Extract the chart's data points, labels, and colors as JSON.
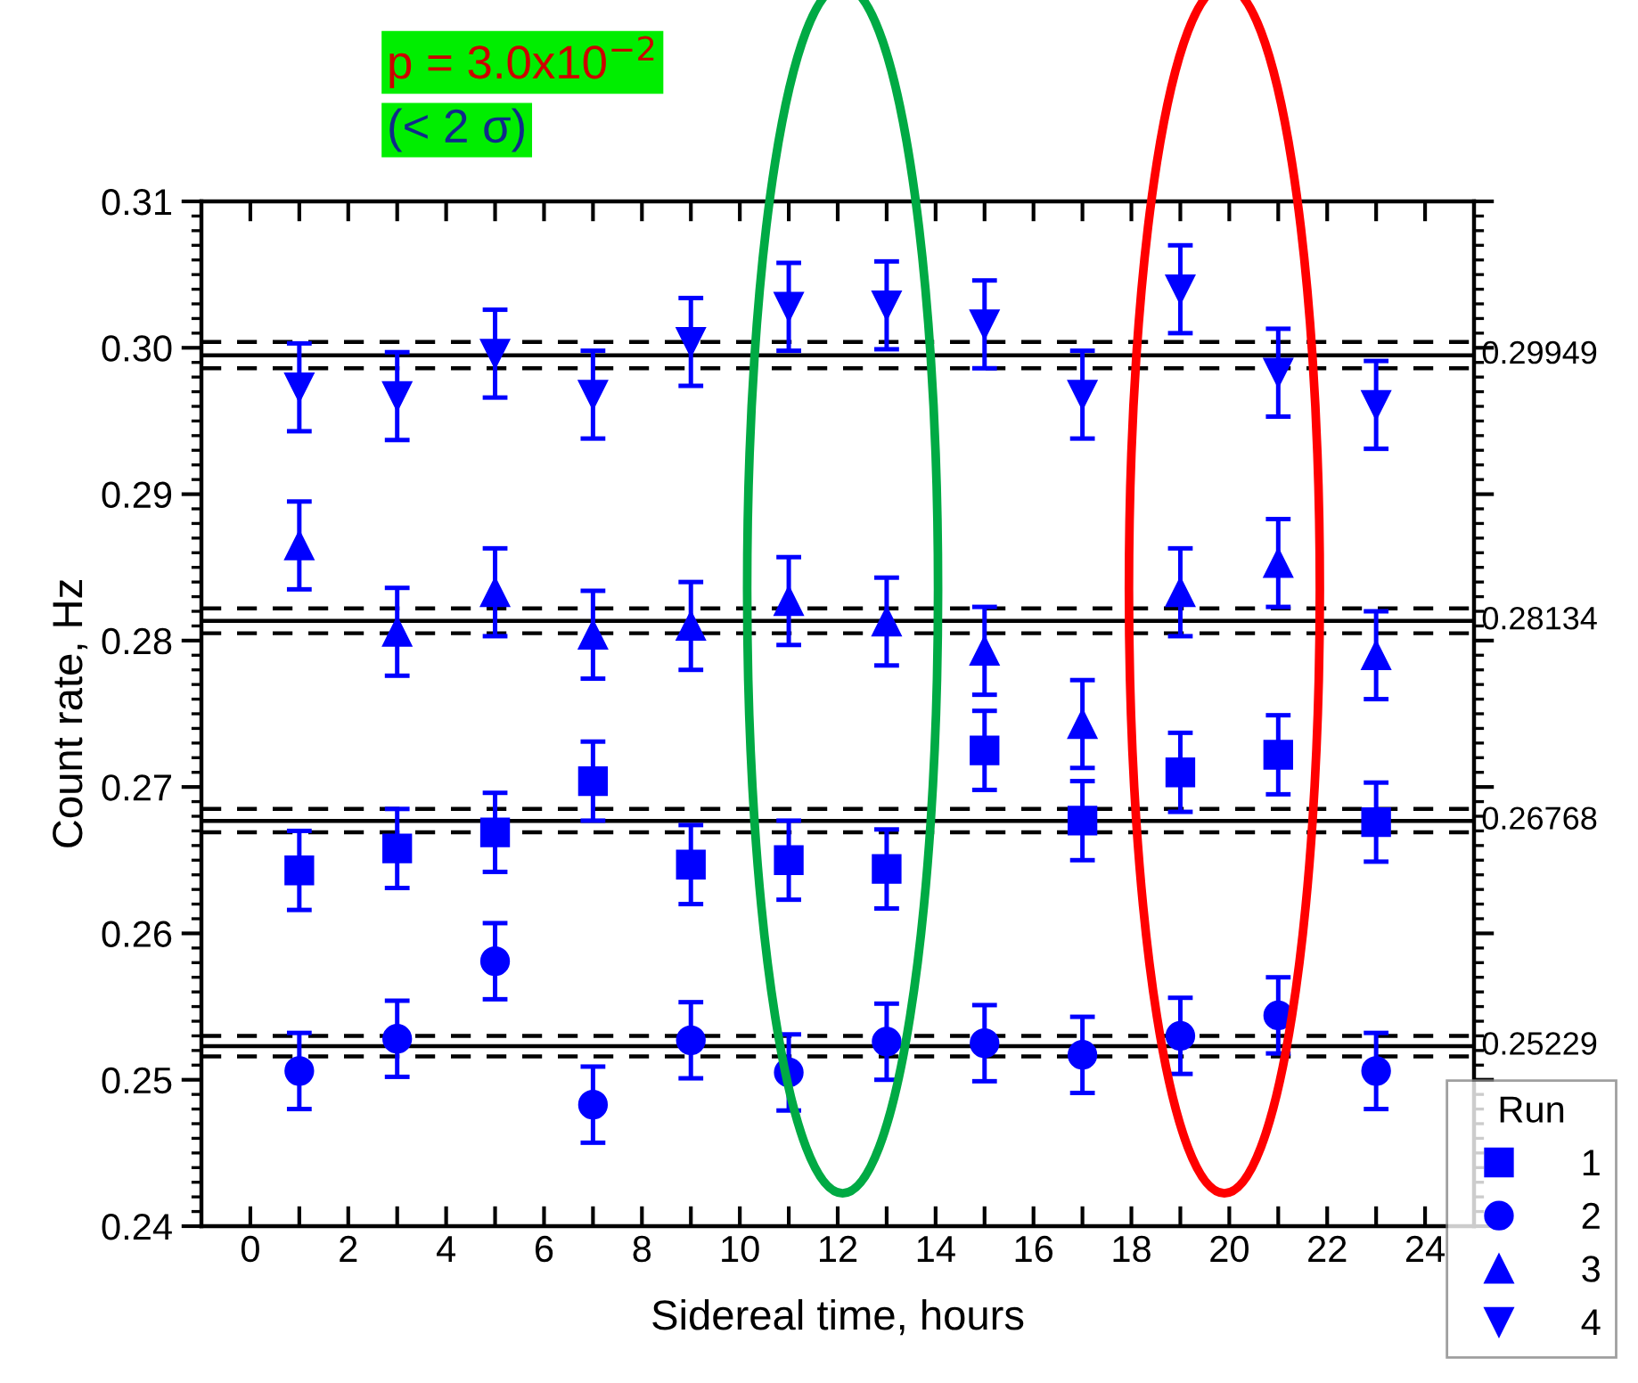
{
  "chart_data": {
    "type": "scatter",
    "xlabel": "Sidereal time, hours",
    "ylabel": "Count rate, Hz",
    "legend_title": "Run",
    "annotations": [
      "p = 3.0x10$^{−2}$",
      "(< 2 σ)"
    ],
    "x": [
      1,
      3,
      5,
      7,
      9,
      11,
      13,
      15,
      17,
      19,
      21,
      23
    ],
    "series": [
      {
        "name": "1",
        "color": "#0000ff",
        "marker": "square",
        "values": [
          0.2643,
          0.2658,
          0.2669,
          0.2704,
          0.2647,
          0.265,
          0.2644,
          0.2725,
          0.2677,
          0.271,
          0.2722,
          0.2676
        ],
        "errors": [
          0.0027,
          0.0027,
          0.0027,
          0.0027,
          0.0027,
          0.0027,
          0.0027,
          0.0027,
          0.0027,
          0.0027,
          0.0027,
          0.0027
        ]
      },
      {
        "name": "2",
        "color": "#0000ff",
        "marker": "circle",
        "values": [
          0.2506,
          0.2528,
          0.2581,
          0.2483,
          0.2527,
          0.2505,
          0.2526,
          0.2525,
          0.2517,
          0.253,
          0.2544,
          0.2506
        ],
        "errors": [
          0.0026,
          0.0026,
          0.0026,
          0.0026,
          0.0026,
          0.0026,
          0.0026,
          0.0026,
          0.0026,
          0.0026,
          0.0026,
          0.0026
        ]
      },
      {
        "name": "3",
        "color": "#0000ff",
        "marker": "triangle",
        "values": [
          0.2865,
          0.2806,
          0.2833,
          0.2804,
          0.281,
          0.2827,
          0.2813,
          0.2793,
          0.2743,
          0.2833,
          0.2853,
          0.279
        ],
        "errors": [
          0.003,
          0.003,
          0.003,
          0.003,
          0.003,
          0.003,
          0.003,
          0.003,
          0.003,
          0.003,
          0.003,
          0.003
        ]
      },
      {
        "name": "4",
        "color": "#0000ff",
        "marker": "triangle_down",
        "values": [
          0.2973,
          0.2967,
          0.2996,
          0.2968,
          0.3004,
          0.3028,
          0.3029,
          0.3016,
          0.2968,
          0.304,
          0.2983,
          0.2961
        ],
        "errors": [
          0.003,
          0.003,
          0.003,
          0.003,
          0.003,
          0.003,
          0.003,
          0.003,
          0.003,
          0.003,
          0.003,
          0.003
        ]
      }
    ],
    "xlim": [
      -1,
      25
    ],
    "xticks": [
      0,
      {
        "value": 1,
        "label": null
      },
      2,
      {
        "value": 3,
        "label": null
      },
      4,
      {
        "value": 5,
        "label": null
      },
      6,
      {
        "value": 7,
        "label": null
      },
      8,
      {
        "value": 9,
        "label": null
      },
      10,
      {
        "value": 11,
        "label": null
      },
      12,
      {
        "value": 13,
        "label": null
      },
      14,
      {
        "value": 15,
        "label": null
      },
      16,
      {
        "value": 17,
        "label": null
      },
      18,
      {
        "value": 19,
        "label": null
      },
      20,
      {
        "value": 21,
        "label": null
      },
      22,
      {
        "value": 23,
        "label": null
      },
      24
    ],
    "ylim": [
      0.24,
      0.31
    ],
    "yticks": [
      {
        "value": 0.24,
        "label": "0.24"
      },
      {
        "value": 0.25,
        "label": "0.25"
      },
      {
        "value": 0.26,
        "label": "0.26"
      },
      {
        "value": 0.27,
        "label": "0.27"
      },
      {
        "value": 0.28,
        "label": "0.28"
      },
      {
        "value": 0.29,
        "label": "0.29"
      },
      {
        "value": 0.3,
        "label": "0.30"
      },
      {
        "value": 0.31,
        "label": "0.31"
      }
    ],
    "ref_lines": [
      {
        "axis": "y",
        "value": 0.29949,
        "label": "0.29949",
        "color": "#000000",
        "line_style": "solid"
      },
      {
        "axis": "y",
        "value": 0.3004,
        "color": "#000000",
        "line_style": "dashed"
      },
      {
        "axis": "y",
        "value": 0.2986,
        "color": "#000000",
        "line_style": "dashed"
      },
      {
        "axis": "y",
        "value": 0.28134,
        "label": "0.28134",
        "color": "#000000",
        "line_style": "solid"
      },
      {
        "axis": "y",
        "value": 0.2822,
        "color": "#000000",
        "line_style": "dashed"
      },
      {
        "axis": "y",
        "value": 0.2805,
        "color": "#000000",
        "line_style": "dashed"
      },
      {
        "axis": "y",
        "value": 0.26768,
        "label": "0.26768",
        "color": "#000000",
        "line_style": "solid"
      },
      {
        "axis": "y",
        "value": 0.2685,
        "color": "#000000",
        "line_style": "dashed"
      },
      {
        "axis": "y",
        "value": 0.2669,
        "color": "#000000",
        "line_style": "dashed"
      },
      {
        "axis": "y",
        "value": 0.25229,
        "label": "0.25229",
        "color": "#000000",
        "line_style": "solid"
      },
      {
        "axis": "y",
        "value": 0.253,
        "color": "#000000",
        "line_style": "dashed"
      },
      {
        "axis": "y",
        "value": 0.2516,
        "color": "#000000",
        "line_style": "dashed"
      }
    ],
    "legend": "bottom right",
    "grid": false
  }
}
